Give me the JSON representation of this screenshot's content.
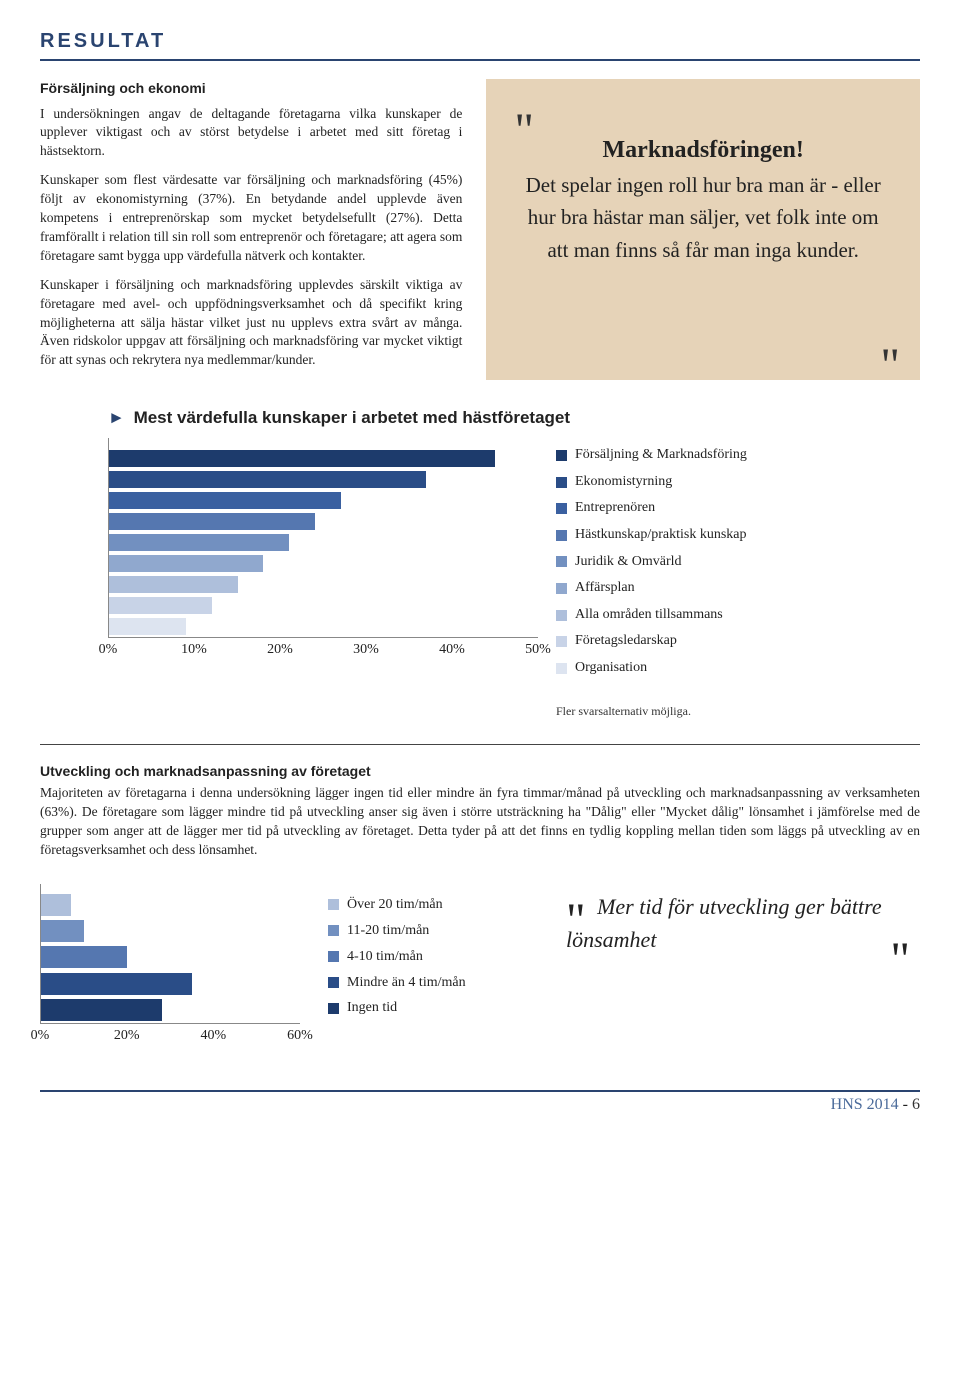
{
  "header": {
    "title": "RESULTAT"
  },
  "section1": {
    "heading": "Försäljning och ekonomi",
    "p1": "I undersökningen angav de deltagande företagarna vilka kunskaper de upplever viktigast och av störst betydelse i arbetet med sitt företag i hästsektorn.",
    "p2": "Kunskaper som flest värdesatte var försäljning och marknadsföring (45%) följt av ekonomistyrning (37%). En betydande andel upplevde även kompetens i entreprenörskap som mycket betydelsefullt (27%). Detta framförallt i relation till sin roll som entreprenör och företagare; att agera som företagare samt bygga upp värdefulla nätverk och kontakter.",
    "p3": "Kunskaper i försäljning och marknadsföring upplevdes särskilt viktiga av företagare med avel- och uppfödningsverksamhet och då specifikt kring möjligheterna att sälja hästar vilket just nu upplevs extra svårt av många. Även ridskolor uppgav att försäljning och marknadsföring var mycket viktigt för att synas och rekrytera nya medlemmar/kunder."
  },
  "quote1": {
    "title": "Marknadsföringen!",
    "body": "Det spelar ingen roll hur bra man är - eller hur bra hästar man säljer, vet folk inte om att man finns så får man inga kunder.",
    "bg_color": "#e6d3b8"
  },
  "chart1": {
    "heading": "Mest värdefulla kunskaper i arbetet med hästföretaget",
    "type": "horizontal-bar",
    "xmax": 50,
    "xticks": [
      "0%",
      "10%",
      "20%",
      "30%",
      "40%",
      "50%"
    ],
    "axis_color": "#888888",
    "series": [
      {
        "label": "Försäljning & Marknadsföring",
        "value": 45,
        "color": "#1d3b6c"
      },
      {
        "label": "Ekonomistyrning",
        "value": 37,
        "color": "#2a4d87"
      },
      {
        "label": "Entreprenören",
        "value": 27,
        "color": "#3a60a0"
      },
      {
        "label": "Hästkunskap/praktisk kunskap",
        "value": 24,
        "color": "#5577b0"
      },
      {
        "label": "Juridik & Omvärld",
        "value": 21,
        "color": "#7290c0"
      },
      {
        "label": "Affärsplan",
        "value": 18,
        "color": "#90a8ce"
      },
      {
        "label": "Alla områden tillsammans",
        "value": 15,
        "color": "#aebfdb"
      },
      {
        "label": "Företagsledarskap",
        "value": 12,
        "color": "#c8d3e7"
      },
      {
        "label": "Organisation",
        "value": 9,
        "color": "#dde4f0"
      }
    ],
    "note": "Fler svarsalternativ möjliga."
  },
  "section2": {
    "heading": "Utveckling och marknadsanpassning av företaget",
    "p1": "Majoriteten av företagarna i denna undersökning lägger ingen tid eller mindre än fyra timmar/månad på utveckling och marknadsanpassning av verksamheten (63%). De företagare som lägger mindre tid på utveckling anser sig även i större utsträckning ha \"Dålig\" eller \"Mycket dålig\" lönsamhet i jämförelse med de grupper som anger att de lägger mer tid på utveckling av företaget. Detta tyder på att det finns en tydlig koppling mellan tiden som läggs på utveckling av en företagsverksamhet och dess lönsamhet."
  },
  "chart2": {
    "type": "horizontal-bar",
    "xmax": 60,
    "xticks": [
      "0%",
      "20%",
      "40%",
      "60%"
    ],
    "axis_color": "#888888",
    "series": [
      {
        "label": "Över 20 tim/mån",
        "value": 7,
        "color": "#aebfdb"
      },
      {
        "label": "11-20 tim/mån",
        "value": 10,
        "color": "#7290c0"
      },
      {
        "label": "4-10 tim/mån",
        "value": 20,
        "color": "#5577b0"
      },
      {
        "label": "Mindre än 4 tim/mån",
        "value": 35,
        "color": "#2a4d87"
      },
      {
        "label": "Ingen tid",
        "value": 28,
        "color": "#1d3b6c"
      }
    ]
  },
  "quote2": {
    "text": "Mer tid för utveckling ger bättre lönsamhet"
  },
  "footer": {
    "source": "HNS 2014",
    "page": "6",
    "border_color": "#2a4470"
  }
}
